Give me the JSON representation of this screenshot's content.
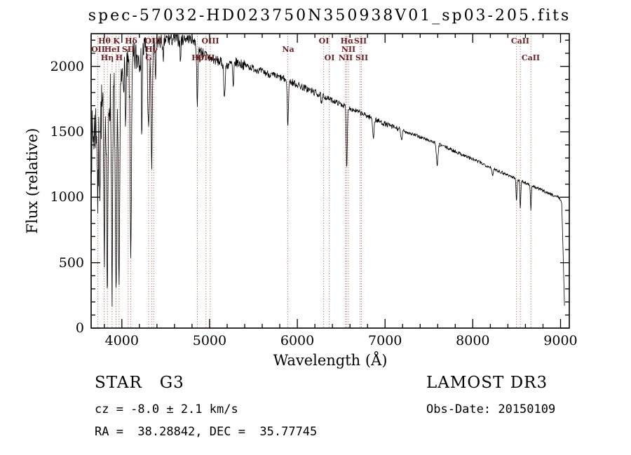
{
  "chart_data": {
    "type": "line",
    "title": "spec-57032-HD023750N350938V01_sp03-205.fits",
    "xlabel": "Wavelength (Å)",
    "ylabel": "Flux (relative)",
    "xlim": [
      3650,
      9100
    ],
    "ylim": [
      0,
      2250
    ],
    "x_ticks_major": [
      4000,
      5000,
      6000,
      7000,
      8000,
      9000
    ],
    "x_minor_step": 200,
    "y_ticks_major": [
      0,
      500,
      1000,
      1500,
      2000
    ],
    "y_minor_step": 100,
    "line_color": "#000000",
    "marker_color": "#b05050",
    "grid": false,
    "legend": "none",
    "spectral_lines": [
      {
        "wl": 3727,
        "label": "OII",
        "row": 2
      },
      {
        "wl": 3798,
        "label": "Hθ",
        "row": 1
      },
      {
        "wl": 3835,
        "label": "Hη",
        "row": 3
      },
      {
        "wl": 3889,
        "label": "HeI",
        "row": 2
      },
      {
        "wl": 3934,
        "label": "K",
        "row": 1
      },
      {
        "wl": 3968,
        "label": "H",
        "row": 3
      },
      {
        "wl": 4072,
        "label": "SII",
        "row": 2
      },
      {
        "wl": 4102,
        "label": "Hδ",
        "row": 1
      },
      {
        "wl": 4305,
        "label": "G",
        "row": 3
      },
      {
        "wl": 4340,
        "label": "Hγ",
        "row": 2
      },
      {
        "wl": 4363,
        "label": "OIII",
        "row": 1
      },
      {
        "wl": 4861,
        "label": "Hβ",
        "row": 3
      },
      {
        "wl": 4959,
        "label": "OIII",
        "row": 3
      },
      {
        "wl": 5007,
        "label": "OIII",
        "row": 1
      },
      {
        "wl": 5892,
        "label": "Na",
        "row": 2
      },
      {
        "wl": 6300,
        "label": "OI",
        "row": 1
      },
      {
        "wl": 6364,
        "label": "OI",
        "row": 3
      },
      {
        "wl": 6548,
        "label": "NII",
        "row": 3
      },
      {
        "wl": 6563,
        "label": "Hα",
        "row": 1
      },
      {
        "wl": 6583,
        "label": "NII",
        "row": 2
      },
      {
        "wl": 6716,
        "label": "SII",
        "row": 1
      },
      {
        "wl": 6731,
        "label": "SII",
        "row": 3
      },
      {
        "wl": 8498,
        "label": "",
        "row": 3
      },
      {
        "wl": 8542,
        "label": "CaII",
        "row": 1
      },
      {
        "wl": 8662,
        "label": "CaII",
        "row": 3
      }
    ],
    "continuum": [
      [
        3650,
        1400
      ],
      [
        3700,
        1550
      ],
      [
        3780,
        1680
      ],
      [
        3860,
        1760
      ],
      [
        3950,
        1840
      ],
      [
        4050,
        1980
      ],
      [
        4150,
        2060
      ],
      [
        4250,
        2130
      ],
      [
        4350,
        2170
      ],
      [
        4450,
        2195
      ],
      [
        4550,
        2210
      ],
      [
        4650,
        2215
      ],
      [
        4750,
        2215
      ],
      [
        4820,
        2200
      ],
      [
        4900,
        2120
      ],
      [
        5000,
        2060
      ],
      [
        5100,
        2040
      ],
      [
        5200,
        2010
      ],
      [
        5300,
        2030
      ],
      [
        5400,
        2010
      ],
      [
        5500,
        1985
      ],
      [
        5600,
        1960
      ],
      [
        5700,
        1935
      ],
      [
        5800,
        1915
      ],
      [
        5900,
        1890
      ],
      [
        6000,
        1860
      ],
      [
        6100,
        1830
      ],
      [
        6200,
        1800
      ],
      [
        6300,
        1770
      ],
      [
        6400,
        1740
      ],
      [
        6500,
        1710
      ],
      [
        6600,
        1680
      ],
      [
        6700,
        1650
      ],
      [
        6800,
        1620
      ],
      [
        6900,
        1590
      ],
      [
        7000,
        1560
      ],
      [
        7100,
        1535
      ],
      [
        7200,
        1510
      ],
      [
        7300,
        1485
      ],
      [
        7400,
        1460
      ],
      [
        7500,
        1435
      ],
      [
        7600,
        1410
      ],
      [
        7700,
        1380
      ],
      [
        7800,
        1350
      ],
      [
        7900,
        1320
      ],
      [
        8000,
        1290
      ],
      [
        8100,
        1260
      ],
      [
        8200,
        1230
      ],
      [
        8300,
        1200
      ],
      [
        8400,
        1170
      ],
      [
        8500,
        1140
      ],
      [
        8600,
        1110
      ],
      [
        8700,
        1080
      ],
      [
        8800,
        1050
      ],
      [
        8900,
        1020
      ],
      [
        8980,
        1000
      ],
      [
        9000,
        985
      ],
      [
        9015,
        940
      ],
      [
        9030,
        560
      ],
      [
        9045,
        170
      ]
    ],
    "absorption": [
      [
        3727,
        650,
        6
      ],
      [
        3750,
        500,
        5
      ],
      [
        3798,
        1150,
        6
      ],
      [
        3835,
        1450,
        7
      ],
      [
        3889,
        1400,
        7
      ],
      [
        3934,
        1750,
        8
      ],
      [
        3968,
        1500,
        8
      ],
      [
        4045,
        400,
        5
      ],
      [
        4102,
        1400,
        8
      ],
      [
        4227,
        550,
        5
      ],
      [
        4305,
        650,
        9
      ],
      [
        4340,
        950,
        7
      ],
      [
        4383,
        300,
        5
      ],
      [
        4472,
        200,
        5
      ],
      [
        4668,
        180,
        5
      ],
      [
        4861,
        430,
        7
      ],
      [
        5170,
        250,
        8
      ],
      [
        5270,
        200,
        6
      ],
      [
        5892,
        330,
        7
      ],
      [
        6277,
        80,
        6
      ],
      [
        6563,
        480,
        6
      ],
      [
        6867,
        140,
        8
      ],
      [
        7186,
        80,
        8
      ],
      [
        7594,
        160,
        10
      ],
      [
        8227,
        70,
        6
      ],
      [
        8498,
        170,
        5
      ],
      [
        8542,
        220,
        5
      ],
      [
        8662,
        190,
        5
      ]
    ],
    "noise": {
      "seed": 7,
      "step": 4,
      "segments": [
        [
          3650,
          3950,
          240
        ],
        [
          3950,
          4300,
          140
        ],
        [
          4300,
          4700,
          60
        ],
        [
          4700,
          5400,
          38
        ],
        [
          5400,
          6300,
          28
        ],
        [
          6300,
          7200,
          20
        ],
        [
          7200,
          8400,
          14
        ],
        [
          8400,
          9100,
          12
        ]
      ]
    }
  },
  "annotations": {
    "classification": "STAR   G3",
    "survey": "LAMOST DR3",
    "cz": "cz = -8.0 ± 2.1 km/s",
    "obs_date": "Obs-Date: 20150109",
    "ra_dec": "RA =  38.28842, DEC =  35.77745"
  }
}
